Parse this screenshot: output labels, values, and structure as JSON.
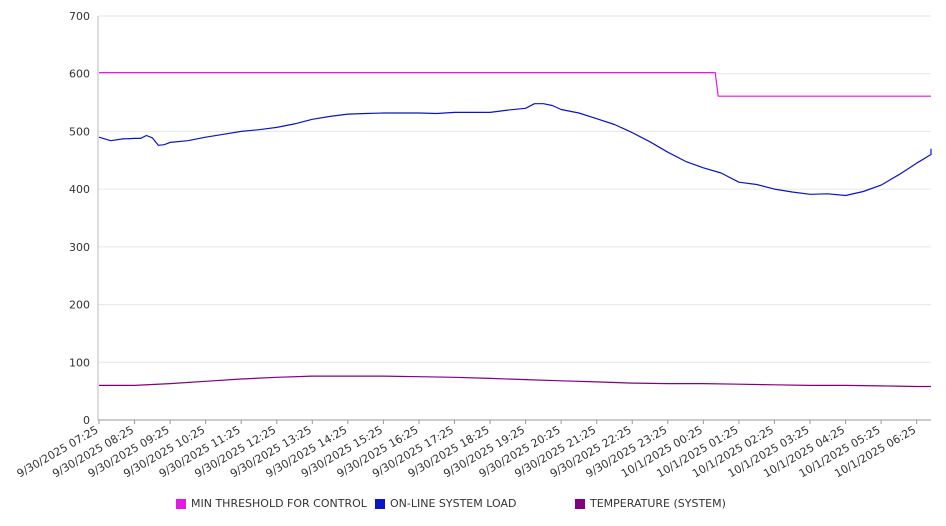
{
  "chart_data": {
    "type": "line",
    "title": "",
    "xlabel": "",
    "ylabel": "",
    "ylim": [
      0,
      700
    ],
    "yticks": [
      0,
      100,
      200,
      300,
      400,
      500,
      600,
      700
    ],
    "grid": true,
    "legend_position": "bottom",
    "x_tick_labels": [
      "9/30/2025 07:25",
      "9/30/2025 08:25",
      "9/30/2025 09:25",
      "9/30/2025 10:25",
      "9/30/2025 11:25",
      "9/30/2025 12:25",
      "9/30/2025 13:25",
      "9/30/2025 14:25",
      "9/30/2025 15:25",
      "9/30/2025 16:25",
      "9/30/2025 17:25",
      "9/30/2025 18:25",
      "9/30/2025 19:25",
      "9/30/2025 20:25",
      "9/30/2025 21:25",
      "9/30/2025 22:25",
      "9/30/2025 23:25",
      "10/1/2025 00:25",
      "10/1/2025 01:25",
      "10/1/2025 02:25",
      "10/1/2025 03:25",
      "10/1/2025 04:25",
      "10/1/2025 05:25",
      "10/1/2025 06:25"
    ],
    "series": [
      {
        "name": "MIN THRESHOLD FOR CONTROL",
        "color": "#e31ae3",
        "points": [
          [
            "9/30/2025 07:25",
            602
          ],
          [
            "9/30/2025 08:25",
            602
          ],
          [
            "9/30/2025 12:25",
            602
          ],
          [
            "9/30/2025 16:25",
            602
          ],
          [
            "9/30/2025 20:25",
            602
          ],
          [
            "10/1/2025 00:25",
            602
          ],
          [
            "10/1/2025 00:45",
            602
          ],
          [
            "10/1/2025 00:50",
            561
          ],
          [
            "10/1/2025 02:25",
            561
          ],
          [
            "10/1/2025 04:25",
            561
          ],
          [
            "10/1/2025 07:20",
            561
          ]
        ]
      },
      {
        "name": "ON-LINE SYSTEM LOAD",
        "color": "#0a14c8",
        "points": [
          [
            "9/30/2025 07:25",
            490
          ],
          [
            "9/30/2025 07:45",
            484
          ],
          [
            "9/30/2025 08:05",
            487
          ],
          [
            "9/30/2025 08:25",
            488
          ],
          [
            "9/30/2025 08:35",
            488
          ],
          [
            "9/30/2025 08:45",
            493
          ],
          [
            "9/30/2025 08:55",
            489
          ],
          [
            "9/30/2025 09:05",
            476
          ],
          [
            "9/30/2025 09:15",
            477
          ],
          [
            "9/30/2025 09:25",
            481
          ],
          [
            "9/30/2025 09:55",
            484
          ],
          [
            "9/30/2025 10:25",
            490
          ],
          [
            "9/30/2025 10:55",
            495
          ],
          [
            "9/30/2025 11:25",
            500
          ],
          [
            "9/30/2025 11:55",
            503
          ],
          [
            "9/30/2025 12:25",
            507
          ],
          [
            "9/30/2025 12:55",
            513
          ],
          [
            "9/30/2025 13:25",
            521
          ],
          [
            "9/30/2025 13:55",
            526
          ],
          [
            "9/30/2025 14:25",
            530
          ],
          [
            "9/30/2025 14:55",
            531
          ],
          [
            "9/30/2025 15:25",
            532
          ],
          [
            "9/30/2025 15:55",
            532
          ],
          [
            "9/30/2025 16:25",
            532
          ],
          [
            "9/30/2025 16:55",
            531
          ],
          [
            "9/30/2025 17:25",
            533
          ],
          [
            "9/30/2025 17:55",
            533
          ],
          [
            "9/30/2025 18:25",
            533
          ],
          [
            "9/30/2025 18:55",
            537
          ],
          [
            "9/30/2025 19:25",
            540
          ],
          [
            "9/30/2025 19:40",
            548
          ],
          [
            "9/30/2025 19:55",
            548
          ],
          [
            "9/30/2025 20:10",
            545
          ],
          [
            "9/30/2025 20:25",
            538
          ],
          [
            "9/30/2025 20:55",
            532
          ],
          [
            "9/30/2025 21:25",
            522
          ],
          [
            "9/30/2025 21:55",
            512
          ],
          [
            "9/30/2025 22:25",
            498
          ],
          [
            "9/30/2025 22:55",
            482
          ],
          [
            "9/30/2025 23:25",
            464
          ],
          [
            "9/30/2025 23:55",
            448
          ],
          [
            "10/1/2025 00:25",
            437
          ],
          [
            "10/1/2025 00:55",
            428
          ],
          [
            "10/1/2025 01:25",
            412
          ],
          [
            "10/1/2025 01:55",
            408
          ],
          [
            "10/1/2025 02:25",
            400
          ],
          [
            "10/1/2025 02:55",
            395
          ],
          [
            "10/1/2025 03:25",
            391
          ],
          [
            "10/1/2025 03:55",
            392
          ],
          [
            "10/1/2025 04:25",
            389
          ],
          [
            "10/1/2025 04:55",
            396
          ],
          [
            "10/1/2025 05:25",
            407
          ],
          [
            "10/1/2025 05:55",
            425
          ],
          [
            "10/1/2025 06:25",
            445
          ],
          [
            "10/1/2025 06:55",
            460
          ],
          [
            "10/1/2025 07:20",
            470
          ]
        ]
      },
      {
        "name": "TEMPERATURE (SYSTEM)",
        "color": "#800080",
        "points": [
          [
            "9/30/2025 07:25",
            60
          ],
          [
            "9/30/2025 08:25",
            60
          ],
          [
            "9/30/2025 09:25",
            63
          ],
          [
            "9/30/2025 10:25",
            67
          ],
          [
            "9/30/2025 11:25",
            71
          ],
          [
            "9/30/2025 12:25",
            74
          ],
          [
            "9/30/2025 13:25",
            76
          ],
          [
            "9/30/2025 14:25",
            76
          ],
          [
            "9/30/2025 15:25",
            76
          ],
          [
            "9/30/2025 16:25",
            75
          ],
          [
            "9/30/2025 17:25",
            74
          ],
          [
            "9/30/2025 18:25",
            72
          ],
          [
            "9/30/2025 19:25",
            70
          ],
          [
            "9/30/2025 20:25",
            68
          ],
          [
            "9/30/2025 21:25",
            66
          ],
          [
            "9/30/2025 22:25",
            64
          ],
          [
            "9/30/2025 23:25",
            63
          ],
          [
            "10/1/2025 00:25",
            63
          ],
          [
            "10/1/2025 01:25",
            62
          ],
          [
            "10/1/2025 02:25",
            61
          ],
          [
            "10/1/2025 03:25",
            60
          ],
          [
            "10/1/2025 04:25",
            60
          ],
          [
            "10/1/2025 05:25",
            59
          ],
          [
            "10/1/2025 06:25",
            58
          ],
          [
            "10/1/2025 07:20",
            58
          ]
        ]
      }
    ]
  },
  "legend": {
    "items": [
      {
        "label": "MIN THRESHOLD FOR CONTROL",
        "color": "#e31ae3"
      },
      {
        "label": "ON-LINE SYSTEM LOAD",
        "color": "#0a14c8"
      },
      {
        "label": "TEMPERATURE (SYSTEM)",
        "color": "#800080"
      }
    ]
  }
}
